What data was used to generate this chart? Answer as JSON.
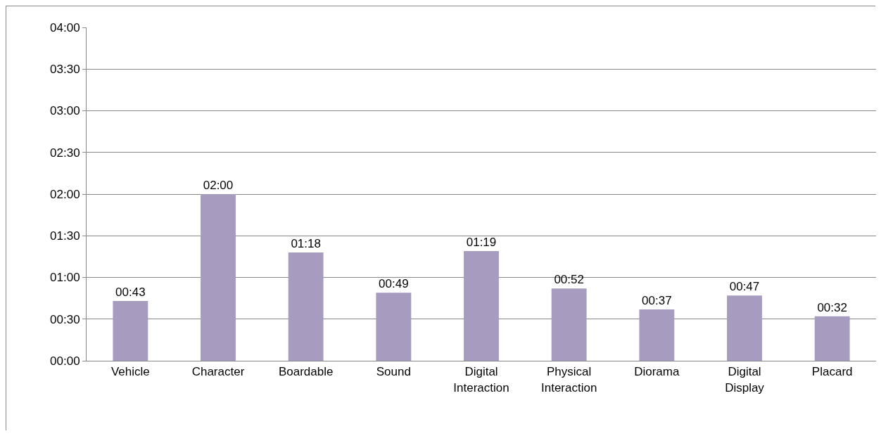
{
  "chart_data": {
    "type": "bar",
    "categories": [
      "Vehicle",
      "Character",
      "Boardable",
      "Sound",
      "Digital Interaction",
      "Physical Interaction",
      "Diorama",
      "Digital Display",
      "Placard"
    ],
    "values": [
      43,
      120,
      78,
      49,
      79,
      52,
      37,
      47,
      32
    ],
    "value_labels": [
      "00:43",
      "02:00",
      "01:18",
      "00:49",
      "01:19",
      "00:52",
      "00:37",
      "00:47",
      "00:32"
    ],
    "color": "#a89bc0",
    "ylim": [
      0,
      240
    ],
    "yticks": [
      {
        "value": 0,
        "label": "00:00"
      },
      {
        "value": 30,
        "label": "00:30"
      },
      {
        "value": 60,
        "label": "01:00"
      },
      {
        "value": 90,
        "label": "01:30"
      },
      {
        "value": 120,
        "label": "02:00"
      },
      {
        "value": 150,
        "label": "02:30"
      },
      {
        "value": 180,
        "label": "03:00"
      },
      {
        "value": 210,
        "label": "03:30"
      },
      {
        "value": 240,
        "label": "04:00"
      }
    ],
    "grid": "y",
    "legend": false
  }
}
